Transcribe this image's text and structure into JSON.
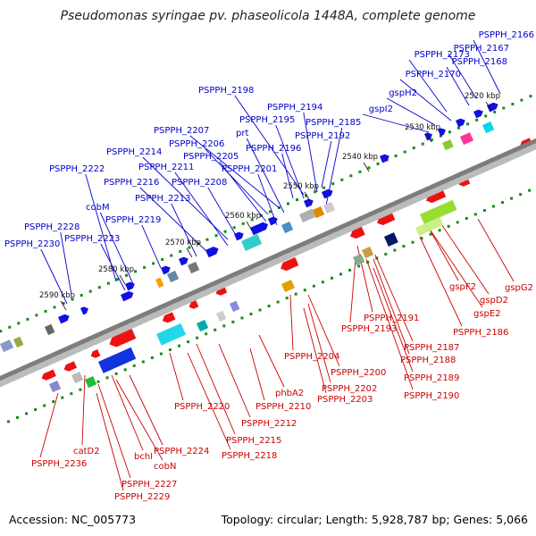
{
  "title": "Pseudomonas syringae pv. phaseolicola 1448A, complete genome",
  "accession": "Accession: NC_005773",
  "topology": "Topology: circular; Length: 5,928,787 bp; Genes: 5,066",
  "colors": {
    "forward_label": "#0000cc",
    "reverse_label": "#cc0000",
    "backbone": "#888888",
    "tick": "#1a8a1a"
  },
  "kbp_labels": [
    "2520 kbp",
    "2530 kbp",
    "2540 kbp",
    "2550 kbp",
    "2560 kbp",
    "2570 kbp",
    "2580 kbp",
    "2590 kbp"
  ],
  "forward_genes": [
    "PSPPH_2166",
    "PSPPH_2167",
    "PSPPH_2168",
    "PSPPH_2173",
    "PSPPH_2170",
    "gspH2",
    "gspI2",
    "PSPPH_2198",
    "PSPPH_2194",
    "PSPPH_2195",
    "PSPPH_2185",
    "PSPPH_2207",
    "prt",
    "PSPPH_2192",
    "PSPPH_2206",
    "PSPPH_2196",
    "PSPPH_2214",
    "PSPPH_2205",
    "PSPPH_2211",
    "PSPPH_2201",
    "PSPPH_2222",
    "PSPPH_2216",
    "PSPPH_2208",
    "cobM",
    "PSPPH_2213",
    "PSPPH_2219",
    "PSPPH_2228",
    "PSPPH_2223",
    "PSPPH_2230"
  ],
  "reverse_genes": [
    "gspG2",
    "gspF2",
    "gspD2",
    "gspE2",
    "PSPPH_2186",
    "PSPPH_2191",
    "PSPPH_2193",
    "PSPPH_2187",
    "PSPPH_2188",
    "PSPPH_2189",
    "PSPPH_2190",
    "PSPPH_2200",
    "PSPPH_2204",
    "PSPPH_2202",
    "PSPPH_2203",
    "phbA2",
    "PSPPH_2210",
    "PSPPH_2220",
    "PSPPH_2212",
    "PSPPH_2215",
    "PSPPH_2218",
    "PSPPH_2224",
    "catD2",
    "bchI",
    "cobN",
    "PSPPH_2236",
    "PSPPH_2227",
    "PSPPH_2229"
  ]
}
